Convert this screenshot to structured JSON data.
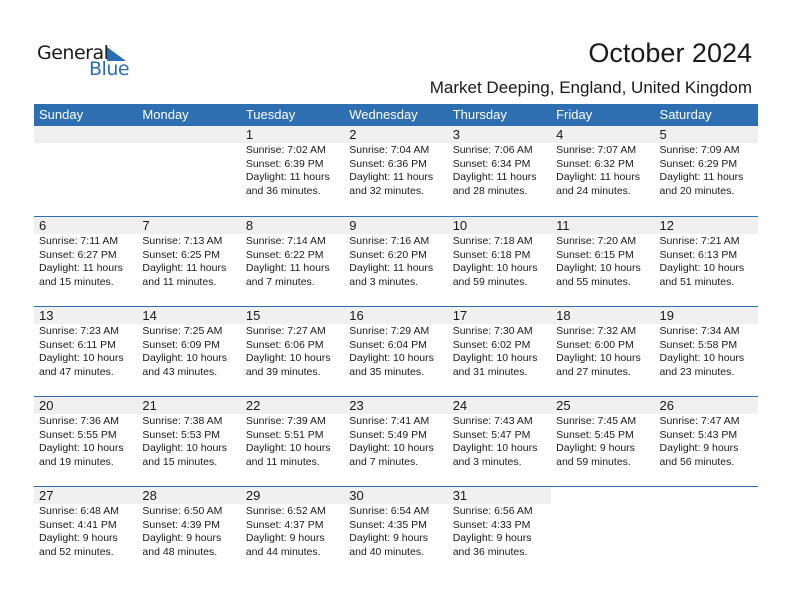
{
  "logo": {
    "text1": "General",
    "text2": "Blue"
  },
  "header": {
    "title": "October 2024",
    "location": "Market Deeping, England, United Kingdom"
  },
  "weekdays": [
    "Sunday",
    "Monday",
    "Tuesday",
    "Wednesday",
    "Thursday",
    "Friday",
    "Saturday"
  ],
  "colors": {
    "accent": "#2e6fb1",
    "day_band": "#f0f0f0"
  },
  "weeks": [
    [
      null,
      null,
      {
        "day": "1",
        "sunrise": "Sunrise: 7:02 AM",
        "sunset": "Sunset: 6:39 PM",
        "daylight1": "Daylight: 11 hours",
        "daylight2": "and 36 minutes."
      },
      {
        "day": "2",
        "sunrise": "Sunrise: 7:04 AM",
        "sunset": "Sunset: 6:36 PM",
        "daylight1": "Daylight: 11 hours",
        "daylight2": "and 32 minutes."
      },
      {
        "day": "3",
        "sunrise": "Sunrise: 7:06 AM",
        "sunset": "Sunset: 6:34 PM",
        "daylight1": "Daylight: 11 hours",
        "daylight2": "and 28 minutes."
      },
      {
        "day": "4",
        "sunrise": "Sunrise: 7:07 AM",
        "sunset": "Sunset: 6:32 PM",
        "daylight1": "Daylight: 11 hours",
        "daylight2": "and 24 minutes."
      },
      {
        "day": "5",
        "sunrise": "Sunrise: 7:09 AM",
        "sunset": "Sunset: 6:29 PM",
        "daylight1": "Daylight: 11 hours",
        "daylight2": "and 20 minutes."
      }
    ],
    [
      {
        "day": "6",
        "sunrise": "Sunrise: 7:11 AM",
        "sunset": "Sunset: 6:27 PM",
        "daylight1": "Daylight: 11 hours",
        "daylight2": "and 15 minutes."
      },
      {
        "day": "7",
        "sunrise": "Sunrise: 7:13 AM",
        "sunset": "Sunset: 6:25 PM",
        "daylight1": "Daylight: 11 hours",
        "daylight2": "and 11 minutes."
      },
      {
        "day": "8",
        "sunrise": "Sunrise: 7:14 AM",
        "sunset": "Sunset: 6:22 PM",
        "daylight1": "Daylight: 11 hours",
        "daylight2": "and 7 minutes."
      },
      {
        "day": "9",
        "sunrise": "Sunrise: 7:16 AM",
        "sunset": "Sunset: 6:20 PM",
        "daylight1": "Daylight: 11 hours",
        "daylight2": "and 3 minutes."
      },
      {
        "day": "10",
        "sunrise": "Sunrise: 7:18 AM",
        "sunset": "Sunset: 6:18 PM",
        "daylight1": "Daylight: 10 hours",
        "daylight2": "and 59 minutes."
      },
      {
        "day": "11",
        "sunrise": "Sunrise: 7:20 AM",
        "sunset": "Sunset: 6:15 PM",
        "daylight1": "Daylight: 10 hours",
        "daylight2": "and 55 minutes."
      },
      {
        "day": "12",
        "sunrise": "Sunrise: 7:21 AM",
        "sunset": "Sunset: 6:13 PM",
        "daylight1": "Daylight: 10 hours",
        "daylight2": "and 51 minutes."
      }
    ],
    [
      {
        "day": "13",
        "sunrise": "Sunrise: 7:23 AM",
        "sunset": "Sunset: 6:11 PM",
        "daylight1": "Daylight: 10 hours",
        "daylight2": "and 47 minutes."
      },
      {
        "day": "14",
        "sunrise": "Sunrise: 7:25 AM",
        "sunset": "Sunset: 6:09 PM",
        "daylight1": "Daylight: 10 hours",
        "daylight2": "and 43 minutes."
      },
      {
        "day": "15",
        "sunrise": "Sunrise: 7:27 AM",
        "sunset": "Sunset: 6:06 PM",
        "daylight1": "Daylight: 10 hours",
        "daylight2": "and 39 minutes."
      },
      {
        "day": "16",
        "sunrise": "Sunrise: 7:29 AM",
        "sunset": "Sunset: 6:04 PM",
        "daylight1": "Daylight: 10 hours",
        "daylight2": "and 35 minutes."
      },
      {
        "day": "17",
        "sunrise": "Sunrise: 7:30 AM",
        "sunset": "Sunset: 6:02 PM",
        "daylight1": "Daylight: 10 hours",
        "daylight2": "and 31 minutes."
      },
      {
        "day": "18",
        "sunrise": "Sunrise: 7:32 AM",
        "sunset": "Sunset: 6:00 PM",
        "daylight1": "Daylight: 10 hours",
        "daylight2": "and 27 minutes."
      },
      {
        "day": "19",
        "sunrise": "Sunrise: 7:34 AM",
        "sunset": "Sunset: 5:58 PM",
        "daylight1": "Daylight: 10 hours",
        "daylight2": "and 23 minutes."
      }
    ],
    [
      {
        "day": "20",
        "sunrise": "Sunrise: 7:36 AM",
        "sunset": "Sunset: 5:55 PM",
        "daylight1": "Daylight: 10 hours",
        "daylight2": "and 19 minutes."
      },
      {
        "day": "21",
        "sunrise": "Sunrise: 7:38 AM",
        "sunset": "Sunset: 5:53 PM",
        "daylight1": "Daylight: 10 hours",
        "daylight2": "and 15 minutes."
      },
      {
        "day": "22",
        "sunrise": "Sunrise: 7:39 AM",
        "sunset": "Sunset: 5:51 PM",
        "daylight1": "Daylight: 10 hours",
        "daylight2": "and 11 minutes."
      },
      {
        "day": "23",
        "sunrise": "Sunrise: 7:41 AM",
        "sunset": "Sunset: 5:49 PM",
        "daylight1": "Daylight: 10 hours",
        "daylight2": "and 7 minutes."
      },
      {
        "day": "24",
        "sunrise": "Sunrise: 7:43 AM",
        "sunset": "Sunset: 5:47 PM",
        "daylight1": "Daylight: 10 hours",
        "daylight2": "and 3 minutes."
      },
      {
        "day": "25",
        "sunrise": "Sunrise: 7:45 AM",
        "sunset": "Sunset: 5:45 PM",
        "daylight1": "Daylight: 9 hours",
        "daylight2": "and 59 minutes."
      },
      {
        "day": "26",
        "sunrise": "Sunrise: 7:47 AM",
        "sunset": "Sunset: 5:43 PM",
        "daylight1": "Daylight: 9 hours",
        "daylight2": "and 56 minutes."
      }
    ],
    [
      {
        "day": "27",
        "sunrise": "Sunrise: 6:48 AM",
        "sunset": "Sunset: 4:41 PM",
        "daylight1": "Daylight: 9 hours",
        "daylight2": "and 52 minutes."
      },
      {
        "day": "28",
        "sunrise": "Sunrise: 6:50 AM",
        "sunset": "Sunset: 4:39 PM",
        "daylight1": "Daylight: 9 hours",
        "daylight2": "and 48 minutes."
      },
      {
        "day": "29",
        "sunrise": "Sunrise: 6:52 AM",
        "sunset": "Sunset: 4:37 PM",
        "daylight1": "Daylight: 9 hours",
        "daylight2": "and 44 minutes."
      },
      {
        "day": "30",
        "sunrise": "Sunrise: 6:54 AM",
        "sunset": "Sunset: 4:35 PM",
        "daylight1": "Daylight: 9 hours",
        "daylight2": "and 40 minutes."
      },
      {
        "day": "31",
        "sunrise": "Sunrise: 6:56 AM",
        "sunset": "Sunset: 4:33 PM",
        "daylight1": "Daylight: 9 hours",
        "daylight2": "and 36 minutes."
      },
      null,
      null
    ]
  ]
}
